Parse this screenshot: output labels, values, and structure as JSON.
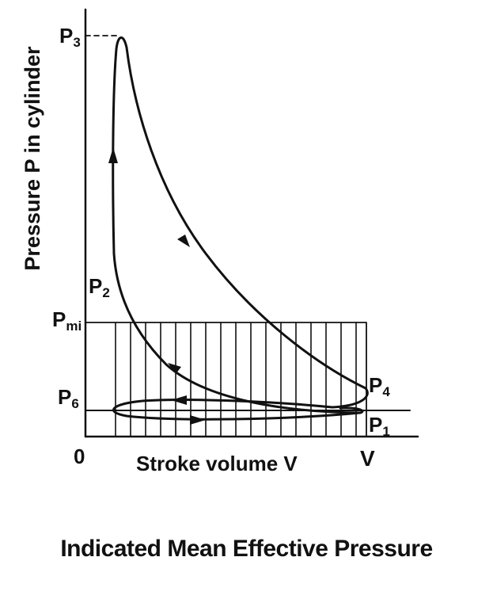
{
  "diagram": {
    "title": "Indicated Mean Effective Pressure",
    "y_axis_label": "Pressure P in cylinder",
    "x_axis_label": "Stroke volume V",
    "origin_label": "0",
    "v_label": "V",
    "points": {
      "p1": {
        "base": "P",
        "sub": "1"
      },
      "p2": {
        "base": "P",
        "sub": "2"
      },
      "p3": {
        "base": "P",
        "sub": "3"
      },
      "p4": {
        "base": "P",
        "sub": "4"
      },
      "p6": {
        "base": "P",
        "sub": "6"
      },
      "pmi": {
        "base": "P",
        "sub": "mi"
      }
    },
    "colors": {
      "ink": "#111111",
      "background": "#ffffff"
    }
  }
}
